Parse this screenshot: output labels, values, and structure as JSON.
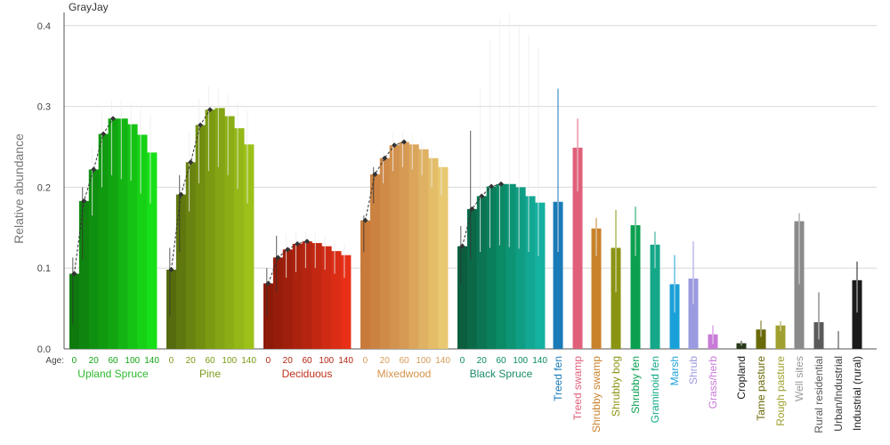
{
  "chart_data": {
    "type": "bar",
    "title": "GrayJay",
    "ylabel": "Relative abundance",
    "ylim": [
      0,
      0.42
    ],
    "yticks": [
      "0.0",
      "0.1",
      "0.2",
      "0.3",
      "0.4"
    ],
    "grid": true,
    "age_prefix": "Age:",
    "age_ticks": [
      "0",
      "20",
      "60",
      "100",
      "140"
    ],
    "age_groups": [
      {
        "name": "Upland Spruce",
        "label_color": "#2eb82e",
        "colors": [
          "#0e7a0e",
          "#11a511",
          "#18e018"
        ],
        "values": [
          0.093,
          0.183,
          0.222,
          0.266,
          0.285,
          0.285,
          0.278,
          0.265,
          0.243
        ],
        "upper": [
          0.113,
          0.2,
          0.25,
          0.295,
          0.307,
          0.307,
          0.305,
          0.297,
          0.29
        ],
        "lower": [
          0.03,
          0.11,
          0.165,
          0.2,
          0.215,
          0.21,
          0.208,
          0.192,
          0.18
        ]
      },
      {
        "name": "Pine",
        "label_color": "#7a9a1a",
        "colors": [
          "#556b0e",
          "#7a9a12",
          "#9cc21a"
        ],
        "values": [
          0.098,
          0.191,
          0.231,
          0.277,
          0.296,
          0.298,
          0.288,
          0.273,
          0.253
        ],
        "upper": [
          0.125,
          0.215,
          0.27,
          0.31,
          0.325,
          0.322,
          0.315,
          0.305,
          0.295
        ],
        "lower": [
          0.04,
          0.12,
          0.17,
          0.205,
          0.22,
          0.225,
          0.215,
          0.198,
          0.18
        ]
      },
      {
        "name": "Deciduous",
        "label_color": "#c0301a",
        "colors": [
          "#8b1a08",
          "#b52410",
          "#e83018"
        ],
        "values": [
          0.081,
          0.113,
          0.123,
          0.13,
          0.133,
          0.131,
          0.127,
          0.121,
          0.116
        ],
        "upper": [
          0.1,
          0.14,
          0.143,
          0.145,
          0.145,
          0.143,
          0.14,
          0.135,
          0.13
        ],
        "lower": [
          0.04,
          0.07,
          0.088,
          0.095,
          0.1,
          0.1,
          0.098,
          0.093,
          0.088
        ]
      },
      {
        "name": "Mixedwood",
        "label_color": "#d4944a",
        "colors": [
          "#c87a3a",
          "#d69a55",
          "#e8c870"
        ],
        "values": [
          0.159,
          0.216,
          0.236,
          0.252,
          0.256,
          0.253,
          0.247,
          0.236,
          0.225
        ],
        "upper": [
          0.165,
          0.225,
          0.245,
          0.268,
          0.27,
          0.265,
          0.258,
          0.248,
          0.235
        ],
        "lower": [
          0.12,
          0.18,
          0.205,
          0.22,
          0.225,
          0.222,
          0.215,
          0.2,
          0.19
        ]
      },
      {
        "name": "Black Spruce",
        "label_color": "#1a8a6a",
        "colors": [
          "#0b5e3e",
          "#0a8a66",
          "#14b0a0"
        ],
        "values": [
          0.127,
          0.173,
          0.189,
          0.201,
          0.204,
          0.204,
          0.2,
          0.189,
          0.181
        ],
        "upper": [
          0.152,
          0.27,
          0.322,
          0.382,
          0.408,
          0.415,
          0.403,
          0.389,
          0.372
        ],
        "lower": [
          0.08,
          0.11,
          0.12,
          0.125,
          0.128,
          0.126,
          0.124,
          0.12,
          0.115
        ]
      }
    ],
    "categories": [
      {
        "name": "Treed fen",
        "color": "#1a7ab8",
        "value": 0.182,
        "upper": 0.322,
        "lower": 0.12
      },
      {
        "name": "Treed swamp",
        "color": "#e0607a",
        "value": 0.249,
        "upper": 0.285,
        "lower": 0.195
      },
      {
        "name": "Shrubby swamp",
        "color": "#c8822a",
        "value": 0.149,
        "upper": 0.162,
        "lower": 0.115
      },
      {
        "name": "Shrubby bog",
        "color": "#8a9412",
        "value": 0.125,
        "upper": 0.172,
        "lower": 0.07
      },
      {
        "name": "Shrubby fen",
        "color": "#0aa050",
        "value": 0.153,
        "upper": 0.176,
        "lower": 0.115
      },
      {
        "name": "Graminoid fen",
        "color": "#14a888",
        "value": 0.129,
        "upper": 0.145,
        "lower": 0.1
      },
      {
        "name": "Marsh",
        "color": "#1aa0d8",
        "value": 0.08,
        "upper": 0.116,
        "lower": 0.045
      },
      {
        "name": "Shrub",
        "color": "#9a9ae0",
        "value": 0.087,
        "upper": 0.133,
        "lower": 0.055
      },
      {
        "name": "Grass/herb",
        "color": "#c87ad8",
        "value": 0.018,
        "upper": 0.029,
        "lower": 0.006
      },
      {
        "name": "Cropland",
        "color": "#2a3a1a",
        "value": 0.007,
        "upper": 0.01,
        "lower": 0.004
      },
      {
        "name": "Tame pasture",
        "color": "#6a6a0a",
        "value": 0.024,
        "upper": 0.035,
        "lower": 0.015
      },
      {
        "name": "Rough pasture",
        "color": "#a0a030",
        "value": 0.029,
        "upper": 0.034,
        "lower": 0.022
      },
      {
        "name": "Well sites",
        "color": "#8a8a8a",
        "value": 0.158,
        "upper": 0.168,
        "lower": 0.08
      },
      {
        "name": "Rural residential",
        "color": "#5a5a5a",
        "value": 0.033,
        "upper": 0.07,
        "lower": 0.012
      },
      {
        "name": "Urban/Industrial",
        "color": "#3a3a3a",
        "value": 0.0,
        "upper": 0.022,
        "lower": 0.0
      },
      {
        "name": "Industrial (rural)",
        "color": "#1a1a1a",
        "value": 0.085,
        "upper": 0.108,
        "lower": 0.045
      }
    ],
    "category_label_colors": [
      "#1a7ab8",
      "#e0607a",
      "#c8822a",
      "#8a9412",
      "#0aa050",
      "#14a888",
      "#1aa0d8",
      "#9a9ae0",
      "#c87ad8",
      "#1a1a1a",
      "#6a6a0a",
      "#a0a030",
      "#9a9a9a",
      "#5a5a5a",
      "#3a3a3a",
      "#1a1a1a"
    ]
  }
}
